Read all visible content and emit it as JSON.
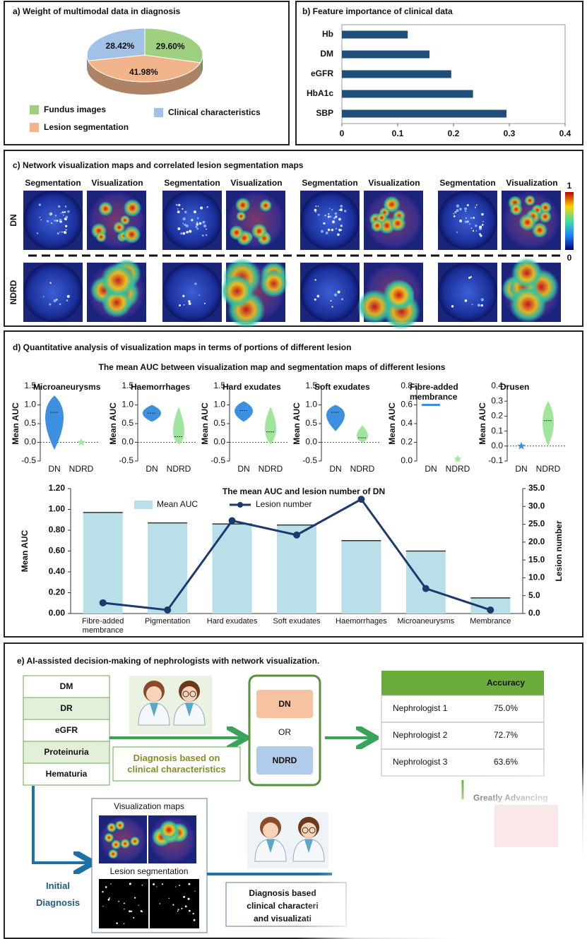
{
  "chart_data": [
    {
      "type": "pie",
      "title": "a) Weight of multimodal data in diagnosis",
      "categories": [
        "Fundus images",
        "Lesion segmentation",
        "Clinical characteristics"
      ],
      "values": [
        29.6,
        41.98,
        28.42
      ],
      "value_labels": [
        "29.60%",
        "41.98%",
        "28.42%"
      ],
      "colors": [
        "#9fd07f",
        "#f2b58b",
        "#a2c1e6"
      ]
    },
    {
      "type": "barh",
      "title": "b) Feature importance of clinical data",
      "categories": [
        "Hb",
        "DM",
        "eGFR",
        "HbA1c",
        "SBP"
      ],
      "values": [
        0.118,
        0.157,
        0.196,
        0.235,
        0.295
      ],
      "color": "#1f4e79",
      "xlim": [
        0,
        0.4
      ],
      "xticks": [
        0,
        0.1,
        0.2,
        0.3,
        0.4
      ]
    },
    {
      "type": "violin",
      "title": "Microaneurysms",
      "ylabel": "Mean AUC",
      "categories": [
        "DN",
        "NDRD"
      ],
      "colors": [
        "#3d8fdf",
        "#9fe59b"
      ],
      "min": [
        -0.2,
        0
      ],
      "median": [
        0.8,
        0
      ],
      "max": [
        1.25,
        0
      ],
      "hline": 0,
      "ylim": [
        -0.5,
        1.5
      ],
      "yticks": [
        -0.5,
        {
          "value": 0,
          "label": "0.0"
        },
        0.5,
        {
          "value": 1,
          "label": "1.0"
        },
        1.5
      ]
    },
    {
      "type": "violin",
      "title": "Haemorrhages",
      "ylabel": "Mean AUC",
      "categories": [
        "DN",
        "NDRD"
      ],
      "colors": [
        "#3d8fdf",
        "#9fe59b"
      ],
      "min": [
        0.55,
        -0.05
      ],
      "median": [
        0.78,
        0.15
      ],
      "max": [
        1.0,
        0.95
      ],
      "hline": 0,
      "ylim": [
        -0.5,
        1.5
      ],
      "yticks": [
        -0.5,
        {
          "value": 0,
          "label": "0.0"
        },
        0.5,
        {
          "value": 1,
          "label": "1.0"
        },
        1.5
      ]
    },
    {
      "type": "violin",
      "title": "Hard exudates",
      "ylabel": "Mean AUC",
      "categories": [
        "DN",
        "NDRD"
      ],
      "colors": [
        "#3d8fdf",
        "#9fe59b"
      ],
      "min": [
        0.55,
        -0.05
      ],
      "median": [
        0.85,
        0.28
      ],
      "max": [
        1.1,
        0.95
      ],
      "hline": 0,
      "ylim": [
        -0.5,
        1.5
      ],
      "yticks": [
        -0.5,
        {
          "value": 0,
          "label": "0.0"
        },
        0.5,
        {
          "value": 1,
          "label": "1.0"
        },
        1.5
      ]
    },
    {
      "type": "violin",
      "title": "Soft exudates",
      "ylabel": "Mean AUC",
      "categories": [
        "DN",
        "NDRD"
      ],
      "colors": [
        "#3d8fdf",
        "#9fe59b"
      ],
      "min": [
        0.3,
        0.0
      ],
      "median": [
        0.8,
        0.12
      ],
      "max": [
        1.0,
        0.45
      ],
      "hline": 0,
      "ylim": [
        -0.5,
        1.5
      ],
      "yticks": [
        -0.5,
        {
          "value": 0,
          "label": "0.0"
        },
        0.5,
        {
          "value": 1,
          "label": "1.0"
        },
        1.5
      ]
    },
    {
      "type": "violin",
      "title": "Fibre-added membrance",
      "ylabel": "Mean AUC",
      "categories": [
        "DN",
        "NDRD"
      ],
      "colors": [
        "#3d8fdf",
        "#9fe59b"
      ],
      "min": [
        0.6,
        0.02
      ],
      "median": [
        0.6,
        0.02
      ],
      "max": [
        0.61,
        0.02
      ],
      "ylim": [
        0,
        0.8
      ],
      "yticks": [
        {
          "value": 0,
          "label": "0.0"
        },
        0.2,
        0.4,
        0.6,
        0.8
      ]
    },
    {
      "type": "violin",
      "title": "Drusen",
      "ylabel": "Mean AUC",
      "categories": [
        "DN",
        "NDRD"
      ],
      "colors": [
        "#3d8fdf",
        "#9fe59b"
      ],
      "min": [
        0,
        0
      ],
      "median": [
        0,
        0.17
      ],
      "max": [
        0,
        0.3
      ],
      "hline": 0,
      "ylim": [
        -0.1,
        0.4
      ],
      "yticks": [
        -0.1,
        {
          "value": 0,
          "label": "0.0"
        },
        0.1,
        0.2,
        0.3,
        0.4
      ]
    },
    {
      "type": "combo",
      "title": "The mean  AUC and lesion number of  DN",
      "ylabel": "Mean AUC",
      "y2label": "Lesion number",
      "categories": [
        "Fibre-added membrance",
        "Pigmentation",
        "Hard exudates",
        "Soft exudates",
        "Haemorrhages",
        "Microaneurysms",
        "Membrance"
      ],
      "series": [
        {
          "name": "Mean AUC",
          "type": "bar",
          "color": "#b9dfe9",
          "values": [
            0.97,
            0.87,
            0.86,
            0.85,
            0.7,
            0.6,
            0.15
          ]
        },
        {
          "name": "Lesion number",
          "type": "line",
          "axis": "y2",
          "color": "#1c3a6e",
          "values": [
            3,
            1,
            26,
            22,
            32,
            7,
            1
          ]
        }
      ],
      "ylim": [
        0,
        1.2
      ],
      "yticks": [
        {
          "value": 0,
          "label": "0.00"
        },
        {
          "value": 0.2,
          "label": "0.20"
        },
        {
          "value": 0.4,
          "label": "0.40"
        },
        {
          "value": 0.6,
          "label": "0.60"
        },
        {
          "value": 0.8,
          "label": "0.80"
        },
        {
          "value": 1,
          "label": "1.00"
        },
        {
          "value": 1.2,
          "label": "1.20"
        }
      ],
      "y2lim": [
        0,
        35
      ],
      "y2ticks": [
        {
          "value": 0,
          "label": "0.0"
        },
        {
          "value": 5,
          "label": "5.0"
        },
        {
          "value": 10,
          "label": "10.0"
        },
        {
          "value": 15,
          "label": "15.0"
        },
        {
          "value": 20,
          "label": "20.0"
        },
        {
          "value": 25,
          "label": "25.0"
        },
        {
          "value": 30,
          "label": "30.0"
        },
        {
          "value": 35,
          "label": "35.0"
        }
      ]
    }
  ],
  "panel_c": {
    "title": "c) Network visualization maps and correlated lesion segmentation maps",
    "column_labels": [
      "Segmentation",
      "Visualization"
    ],
    "row_labels": [
      "DN",
      "NDRD"
    ],
    "colorbar_labels": [
      "1",
      "0"
    ]
  },
  "panel_d": {
    "title": "d) Quantitative analysis of visualization maps in terms of portions of different lesion",
    "subtitle": "The mean  AUC between visualization map and segmentation maps of different lesions"
  },
  "panel_e": {
    "title": "e) AI-assisted decision-making of nephrologists with network visualization.",
    "inputs": [
      "DM",
      "DR",
      "eGFR",
      "Proteinuria",
      "Hematuria"
    ],
    "left_label": "Diagnosis based on clinical characteristics",
    "outcomes": [
      "DN",
      "OR",
      "NDRD"
    ],
    "table": {
      "header": "Accuracy",
      "rows": [
        [
          "Nephrologist 1",
          "75.0%"
        ],
        [
          "Nephrologist 2",
          "72.7%"
        ],
        [
          "Nephrologist 3",
          "63.6%"
        ]
      ]
    },
    "note": "Greatly Advancing",
    "viz_box": [
      "Visualization maps",
      "Lesion segmentation"
    ],
    "initial": "Initial Diagnosis",
    "right_label": [
      "Diagnosis based",
      "clinical characteri",
      "and visualizati"
    ]
  }
}
